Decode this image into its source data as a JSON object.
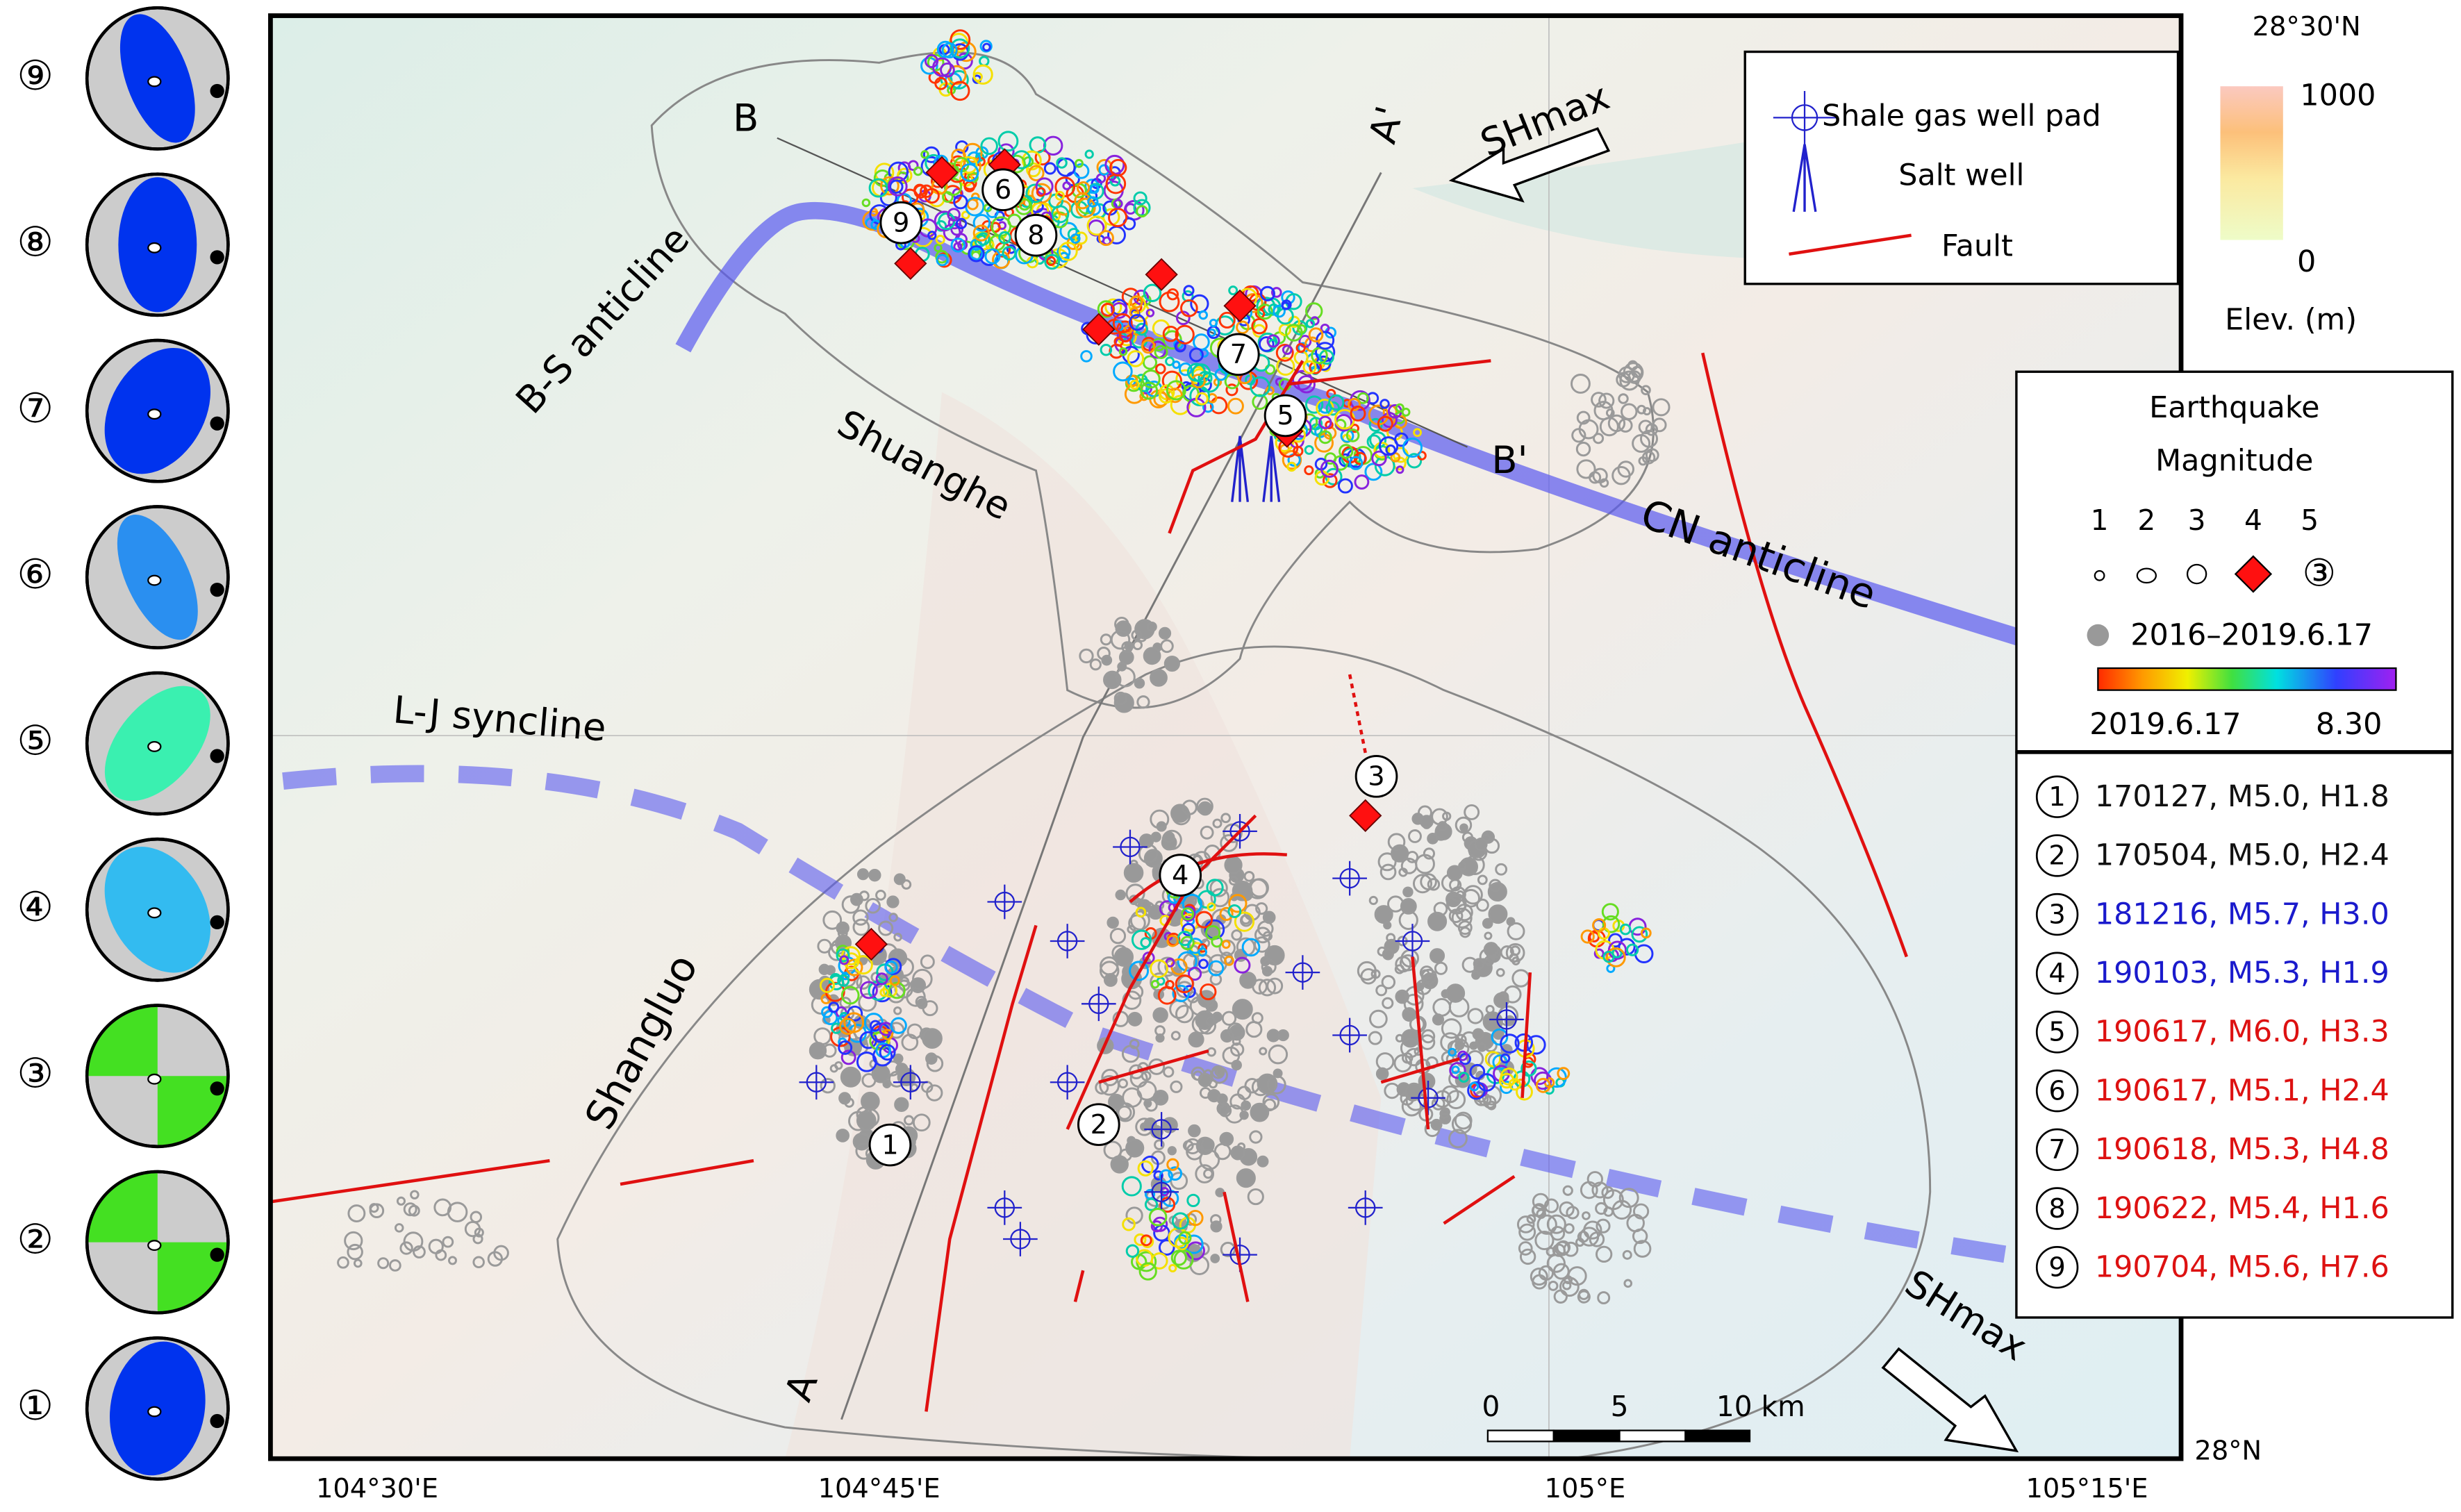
{
  "axes": {
    "x_labels": [
      "104°30'E",
      "104°45'E",
      "105°E",
      "105°15'E"
    ],
    "y_labels": [
      "28°30'N",
      "28°N"
    ]
  },
  "map_labels": {
    "bs_anticline": "B-S anticline",
    "shuanghe": "Shuanghe",
    "cn_anticline": "CN anticline",
    "lj_syncline": "L-J syncline",
    "shangluo": "Shangluo",
    "shmax_top": "SHmax",
    "shmax_bottom": "SHmax",
    "a": "A",
    "a_prime": "A'",
    "b": "B",
    "b_prime": "B'"
  },
  "legend": {
    "items": [
      "Shale gas well pad",
      "Salt well",
      "Fault"
    ]
  },
  "elevation": {
    "max": "1000",
    "min": "0",
    "title": "Elev. (m)"
  },
  "magnitude_legend": {
    "title_line1": "Earthquake",
    "title_line2": "Magnitude",
    "sizes": [
      "1",
      "2",
      "3",
      "4",
      "5"
    ],
    "m5_symbol": "③",
    "gray_label": "2016–2019.6.17",
    "colorbar_start": "2019.6.17",
    "colorbar_end": "8.30"
  },
  "events": [
    {
      "id": "1",
      "text": "170127, M5.0, H1.8",
      "color": "#111111"
    },
    {
      "id": "2",
      "text": "170504, M5.0, H2.4",
      "color": "#111111"
    },
    {
      "id": "3",
      "text": "181216, M5.7, H3.0",
      "color": "#1a1acc"
    },
    {
      "id": "4",
      "text": "190103, M5.3, H1.9",
      "color": "#1a1acc"
    },
    {
      "id": "5",
      "text": "190617, M6.0, H3.3",
      "color": "#dd1111"
    },
    {
      "id": "6",
      "text": "190617, M5.1, H2.4",
      "color": "#dd1111"
    },
    {
      "id": "7",
      "text": "190618, M5.3, H4.8",
      "color": "#dd1111"
    },
    {
      "id": "8",
      "text": "190622, M5.4, H1.6",
      "color": "#dd1111"
    },
    {
      "id": "9",
      "text": "190704, M5.6, H7.6",
      "color": "#dd1111"
    }
  ],
  "beachballs": [
    "⑨",
    "⑧",
    "⑦",
    "⑥",
    "⑤",
    "④",
    "③",
    "②",
    "①"
  ],
  "scale_bar": [
    "0",
    "5",
    "10 km"
  ]
}
